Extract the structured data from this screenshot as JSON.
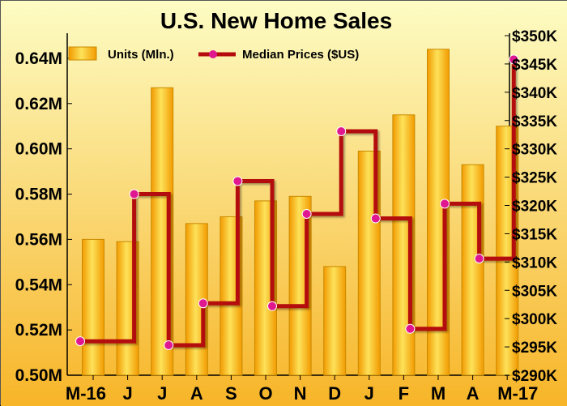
{
  "chart_data": {
    "type": "bar+line",
    "title": "U.S. New Home Sales",
    "categories": [
      "M-16",
      "J",
      "J",
      "A",
      "S",
      "O",
      "N",
      "D",
      "J",
      "F",
      "M",
      "A",
      "M-17"
    ],
    "series": [
      {
        "name": "Units (Mln.)",
        "type": "bar",
        "axis": "left",
        "values": [
          0.56,
          0.559,
          0.627,
          0.567,
          0.57,
          0.577,
          0.579,
          0.548,
          0.599,
          0.615,
          0.644,
          0.593,
          0.61
        ]
      },
      {
        "name": "Median Prices ($US)",
        "type": "step-line",
        "axis": "right",
        "values": [
          296000,
          322000,
          295300,
          302700,
          324300,
          302200,
          318500,
          333100,
          317700,
          298200,
          320300,
          310600,
          345800
        ]
      }
    ],
    "y_left": {
      "ylim": [
        0.5,
        0.65
      ],
      "ticks": [
        "0.50M",
        "0.52M",
        "0.54M",
        "0.56M",
        "0.58M",
        "0.60M",
        "0.62M",
        "0.64M"
      ]
    },
    "y_right": {
      "ylim": [
        290000,
        350000
      ],
      "ticks": [
        "$290K",
        "$295K",
        "$300K",
        "$305K",
        "$310K",
        "$315K",
        "$320K",
        "$325K",
        "$330K",
        "$335K",
        "$340K",
        "$345K",
        "$350K"
      ]
    },
    "xlabel": "",
    "ylabel": "",
    "grid": false,
    "legend_position": "top-left",
    "colors": {
      "bar_light": "#fde25a",
      "bar_dark": "#f29a00",
      "line": "#b40c0c",
      "marker": "#e0188f",
      "background_top": "#fdfcc4",
      "background_bottom": "#f7b528"
    }
  }
}
